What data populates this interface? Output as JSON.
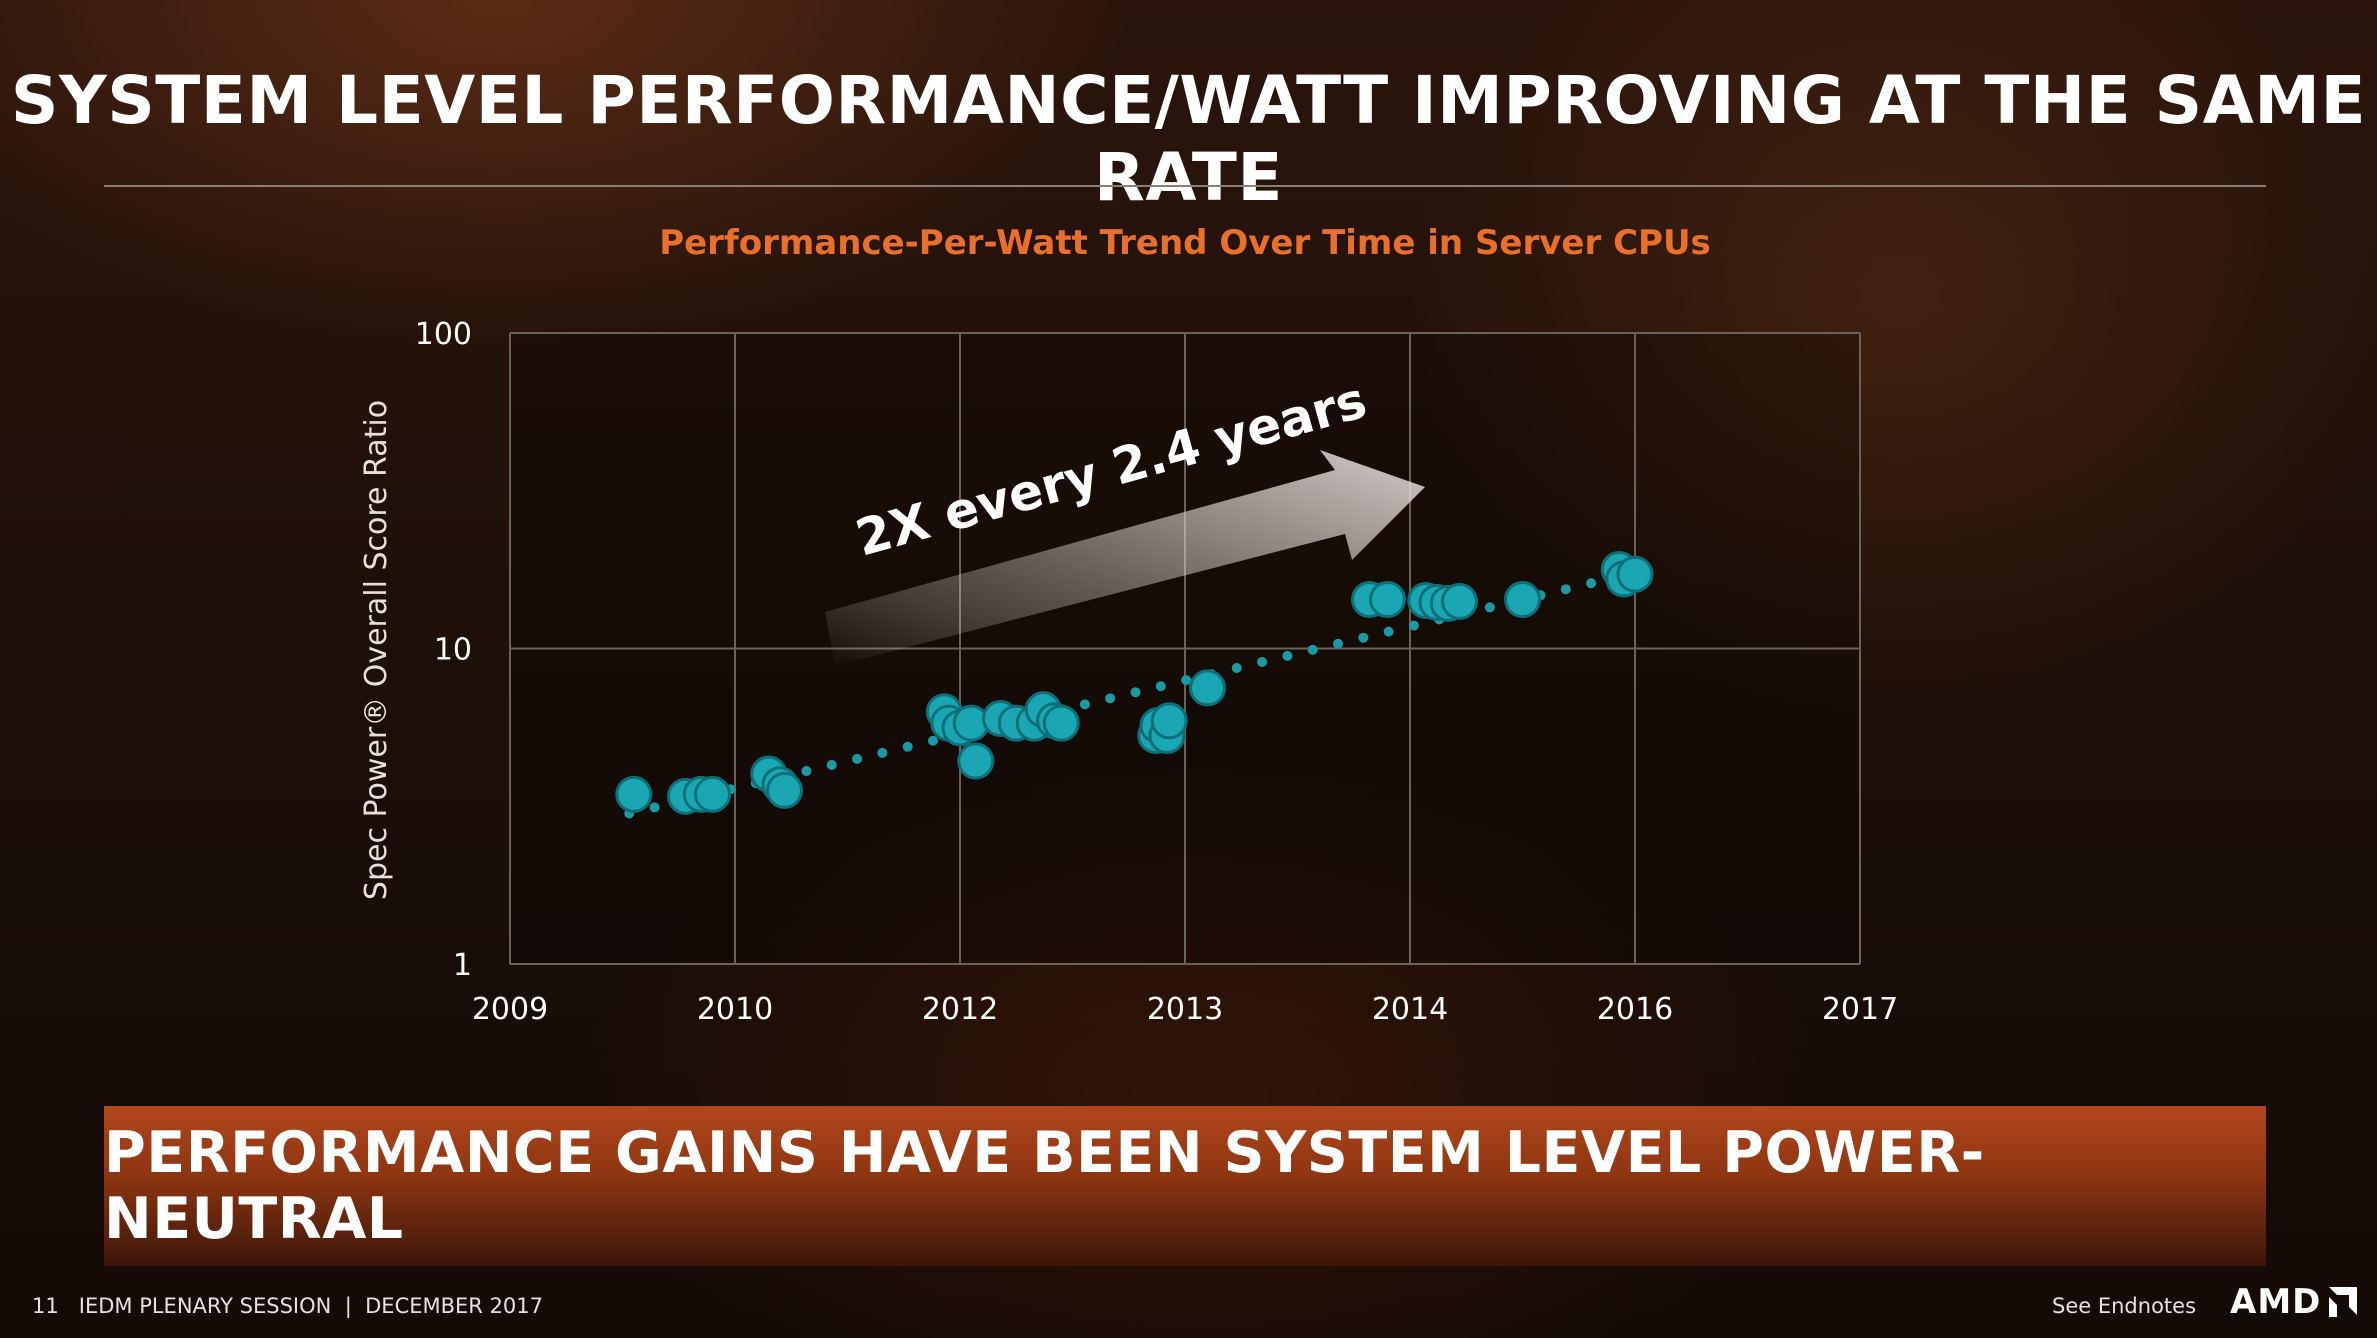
{
  "slide": {
    "title": "SYSTEM LEVEL PERFORMANCE/WATT IMPROVING AT THE SAME RATE",
    "banner": "PERFORMANCE GAINS HAVE BEEN SYSTEM LEVEL POWER-NEUTRAL",
    "footer_page": "11",
    "footer_session": "IEDM PLENARY SESSION",
    "footer_separator": "|",
    "footer_date": "DECEMBER 2017",
    "footer_endnotes": "See Endnotes",
    "logo_text": "AMD"
  },
  "colors": {
    "title_accent": "#e8702a",
    "points": "#1aa7b3",
    "points_border": "#0d6f78",
    "trend": "#1a9aa5",
    "grid": "#6a625c"
  },
  "chart_data": {
    "type": "scatter",
    "title": "Performance-Per-Watt Trend Over Time in Server CPUs",
    "ylabel": "Spec Power® Overall Score Ratio",
    "xlabel": "",
    "y_scale": "log",
    "ylim": [
      1,
      100
    ],
    "y_ticks": [
      "1",
      "10",
      "100"
    ],
    "x_ticks": [
      "2009",
      "2010",
      "2012",
      "2013",
      "2014",
      "2016",
      "2017"
    ],
    "grid": true,
    "annotation": "2X every 2.4 years",
    "series": [
      {
        "points": [
          {
            "x": 0.55,
            "y": 3.45
          },
          {
            "x": 0.78,
            "y": 3.4
          },
          {
            "x": 0.85,
            "y": 3.45
          },
          {
            "x": 0.9,
            "y": 3.45
          },
          {
            "x": 1.15,
            "y": 4.0
          },
          {
            "x": 1.2,
            "y": 3.7
          },
          {
            "x": 1.22,
            "y": 3.55
          },
          {
            "x": 1.93,
            "y": 6.3
          },
          {
            "x": 1.95,
            "y": 5.8
          },
          {
            "x": 2.0,
            "y": 5.6
          },
          {
            "x": 2.05,
            "y": 5.8
          },
          {
            "x": 2.07,
            "y": 4.4
          },
          {
            "x": 2.18,
            "y": 6.0
          },
          {
            "x": 2.25,
            "y": 5.8
          },
          {
            "x": 2.33,
            "y": 5.8
          },
          {
            "x": 2.37,
            "y": 6.4
          },
          {
            "x": 2.42,
            "y": 5.9
          },
          {
            "x": 2.45,
            "y": 5.8
          },
          {
            "x": 2.87,
            "y": 5.3
          },
          {
            "x": 2.88,
            "y": 5.7
          },
          {
            "x": 2.92,
            "y": 5.3
          },
          {
            "x": 2.93,
            "y": 5.9
          },
          {
            "x": 3.1,
            "y": 7.5
          },
          {
            "x": 3.82,
            "y": 14.3
          },
          {
            "x": 3.9,
            "y": 14.3
          },
          {
            "x": 4.07,
            "y": 14.2
          },
          {
            "x": 4.12,
            "y": 14.0
          },
          {
            "x": 4.17,
            "y": 13.9
          },
          {
            "x": 4.22,
            "y": 14.1
          },
          {
            "x": 4.5,
            "y": 14.3
          },
          {
            "x": 4.93,
            "y": 17.8
          },
          {
            "x": 4.95,
            "y": 16.6
          },
          {
            "x": 5.0,
            "y": 17.2
          }
        ]
      }
    ],
    "trend_line": {
      "x_start": 0.53,
      "y_start": 3.0,
      "x_end": 5.03,
      "y_end": 17.6
    }
  }
}
